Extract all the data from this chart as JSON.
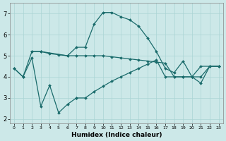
{
  "xlabel": "Humidex (Indice chaleur)",
  "bg_color": "#cce8e8",
  "line_color": "#1a6b6b",
  "grid_color": "#aad4d4",
  "xlim": [
    -0.5,
    23.5
  ],
  "ylim": [
    1.8,
    7.5
  ],
  "yticks": [
    2,
    3,
    4,
    5,
    6,
    7
  ],
  "xticks": [
    0,
    1,
    2,
    3,
    4,
    5,
    6,
    7,
    8,
    9,
    10,
    11,
    12,
    13,
    14,
    15,
    16,
    17,
    18,
    19,
    20,
    21,
    22,
    23
  ],
  "line1_x": [
    0,
    1,
    2,
    3,
    6,
    7,
    8,
    9,
    10,
    11,
    12,
    13,
    14,
    15,
    16,
    17,
    18,
    19,
    20,
    21,
    22,
    23
  ],
  "line1_y": [
    4.4,
    4.0,
    5.2,
    5.2,
    5.0,
    5.4,
    5.4,
    6.5,
    7.05,
    7.05,
    6.85,
    6.7,
    6.4,
    5.85,
    5.2,
    4.4,
    4.2,
    4.75,
    4.0,
    3.7,
    4.5,
    4.5
  ],
  "line2_x": [
    0,
    1,
    2,
    3,
    4,
    5,
    6,
    7
  ],
  "line2_y": [
    4.4,
    4.0,
    4.9,
    2.6,
    3.6,
    2.3,
    2.7,
    3.0
  ],
  "line3_x": [
    2,
    3,
    4,
    5,
    6,
    7,
    8,
    9,
    10,
    11,
    12,
    13,
    14,
    15,
    16,
    17,
    18,
    19,
    20,
    21,
    22,
    23
  ],
  "line3_y": [
    5.2,
    5.2,
    5.1,
    5.05,
    5.0,
    5.0,
    5.0,
    5.0,
    5.0,
    4.95,
    4.9,
    4.85,
    4.8,
    4.75,
    4.7,
    4.65,
    4.0,
    4.0,
    4.0,
    4.0,
    4.5,
    4.5
  ],
  "line4_x": [
    7,
    8,
    9,
    10,
    11,
    12,
    13,
    14,
    15,
    16,
    17,
    18,
    19,
    20,
    21,
    22,
    23
  ],
  "line4_y": [
    3.0,
    3.0,
    3.3,
    3.55,
    3.8,
    4.0,
    4.2,
    4.4,
    4.6,
    4.8,
    4.0,
    4.0,
    4.0,
    4.0,
    4.5,
    4.5,
    4.5
  ]
}
